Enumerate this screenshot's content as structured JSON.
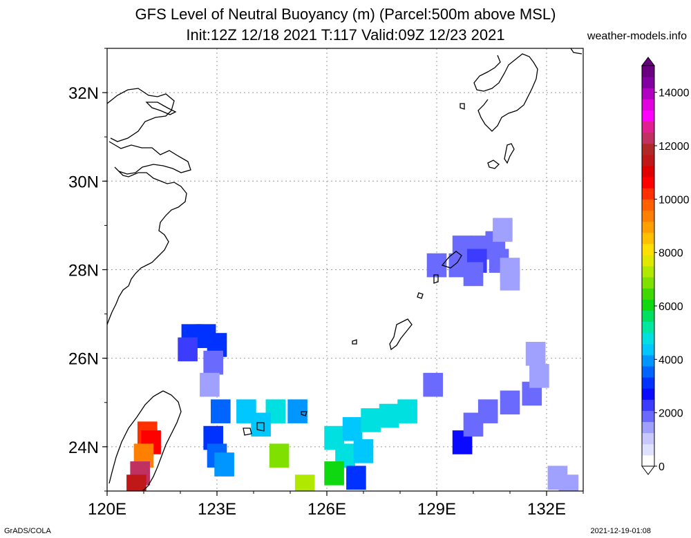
{
  "header": {
    "title_line1": "GFS Level of Neutral Buoyancy (m) (Parcel:500m above MSL)",
    "title_line2": "Init:12Z 12/18 2021 T:117 Valid:09Z 12/23 2021",
    "site": "weather-models.info"
  },
  "footer": {
    "left": "GrADS/COLA",
    "right": "2021-12-19-01:08"
  },
  "chart_data": {
    "type": "heatmap",
    "title": "GFS Level of Neutral Buoyancy (m) (Parcel:500m above MSL)",
    "subtitle": "Init:12Z 12/18 2021 T:117 Valid:09Z 12/23 2021",
    "x_ticks": [
      "120E",
      "123E",
      "126E",
      "129E",
      "132E"
    ],
    "y_ticks": [
      "24N",
      "26N",
      "28N",
      "30N",
      "32N"
    ],
    "xlim": [
      120,
      133
    ],
    "ylim": [
      23,
      33
    ],
    "grid": true,
    "colorbar": {
      "labels": [
        "0",
        "2000",
        "4000",
        "6000",
        "8000",
        "10000",
        "12000",
        "14000"
      ],
      "range": [
        0,
        15000
      ],
      "colors": [
        "#ffffff",
        "#e0e0ff",
        "#c8c8ff",
        "#a0a0ff",
        "#6a6aff",
        "#3c3cff",
        "#0a0aff",
        "#0032ff",
        "#0064ff",
        "#0096ff",
        "#00c8ff",
        "#00e0e0",
        "#00e8a0",
        "#00e060",
        "#10d810",
        "#40d800",
        "#80e000",
        "#b0e800",
        "#e0e800",
        "#ffe000",
        "#ffc000",
        "#ffa000",
        "#ff8000",
        "#ff6000",
        "#ff3000",
        "#ff0000",
        "#e00000",
        "#c01818",
        "#b02828",
        "#c03060",
        "#e02090",
        "#ff00ff",
        "#e000e0",
        "#b000c0",
        "#8000a0",
        "#6a0080"
      ],
      "position": "right"
    },
    "cells": [
      {
        "lon": 129.7,
        "lat": 28.5,
        "value": 1500
      },
      {
        "lon": 130.2,
        "lat": 28.5,
        "value": 1700
      },
      {
        "lon": 130.6,
        "lat": 28.6,
        "value": 1600
      },
      {
        "lon": 130.8,
        "lat": 28.9,
        "value": 1400
      },
      {
        "lon": 129.0,
        "lat": 28.1,
        "value": 1500
      },
      {
        "lon": 129.6,
        "lat": 28.1,
        "value": 1900
      },
      {
        "lon": 130.1,
        "lat": 28.2,
        "value": 2100
      },
      {
        "lon": 130.7,
        "lat": 28.2,
        "value": 1700
      },
      {
        "lon": 131.0,
        "lat": 28.0,
        "value": 1300
      },
      {
        "lon": 130.0,
        "lat": 27.9,
        "value": 1500
      },
      {
        "lon": 131.0,
        "lat": 27.8,
        "value": 1400
      },
      {
        "lon": 122.3,
        "lat": 26.5,
        "value": 2800
      },
      {
        "lon": 122.7,
        "lat": 26.5,
        "value": 3200
      },
      {
        "lon": 123.0,
        "lat": 26.3,
        "value": 2900
      },
      {
        "lon": 122.2,
        "lat": 26.2,
        "value": 2300
      },
      {
        "lon": 122.9,
        "lat": 25.9,
        "value": 1800
      },
      {
        "lon": 122.8,
        "lat": 25.4,
        "value": 1400
      },
      {
        "lon": 123.1,
        "lat": 24.8,
        "value": 3600
      },
      {
        "lon": 123.8,
        "lat": 24.8,
        "value": 4300
      },
      {
        "lon": 124.6,
        "lat": 24.8,
        "value": 4600
      },
      {
        "lon": 125.2,
        "lat": 24.8,
        "value": 4000
      },
      {
        "lon": 124.2,
        "lat": 24.5,
        "value": 4200
      },
      {
        "lon": 122.9,
        "lat": 24.2,
        "value": 3000
      },
      {
        "lon": 123.0,
        "lat": 23.8,
        "value": 3500
      },
      {
        "lon": 123.2,
        "lat": 23.6,
        "value": 3900
      },
      {
        "lon": 124.7,
        "lat": 23.8,
        "value": 6700
      },
      {
        "lon": 126.2,
        "lat": 24.2,
        "value": 4600
      },
      {
        "lon": 126.7,
        "lat": 24.4,
        "value": 4400
      },
      {
        "lon": 127.2,
        "lat": 24.6,
        "value": 4900
      },
      {
        "lon": 127.7,
        "lat": 24.7,
        "value": 4500
      },
      {
        "lon": 128.2,
        "lat": 24.8,
        "value": 4700
      },
      {
        "lon": 126.5,
        "lat": 23.8,
        "value": 4800
      },
      {
        "lon": 127.0,
        "lat": 23.9,
        "value": 4400
      },
      {
        "lon": 126.2,
        "lat": 23.4,
        "value": 6100
      },
      {
        "lon": 126.8,
        "lat": 23.3,
        "value": 3200
      },
      {
        "lon": 125.4,
        "lat": 23.1,
        "value": 7100
      },
      {
        "lon": 121.1,
        "lat": 24.3,
        "value": 10200
      },
      {
        "lon": 121.2,
        "lat": 24.1,
        "value": 10800
      },
      {
        "lon": 121.0,
        "lat": 23.8,
        "value": 9500
      },
      {
        "lon": 120.9,
        "lat": 23.4,
        "value": 12500
      },
      {
        "lon": 120.8,
        "lat": 23.1,
        "value": 11600
      },
      {
        "lon": 129.7,
        "lat": 24.1,
        "value": 2400
      },
      {
        "lon": 130.0,
        "lat": 24.5,
        "value": 1800
      },
      {
        "lon": 130.4,
        "lat": 24.8,
        "value": 1500
      },
      {
        "lon": 131.0,
        "lat": 25.0,
        "value": 1600
      },
      {
        "lon": 131.6,
        "lat": 25.2,
        "value": 1500
      },
      {
        "lon": 131.8,
        "lat": 25.6,
        "value": 1400
      },
      {
        "lon": 131.7,
        "lat": 26.1,
        "value": 1400
      },
      {
        "lon": 128.9,
        "lat": 25.4,
        "value": 1900
      },
      {
        "lon": 132.3,
        "lat": 23.3,
        "value": 1400
      },
      {
        "lon": 132.6,
        "lat": 23.1,
        "value": 1300
      }
    ]
  }
}
